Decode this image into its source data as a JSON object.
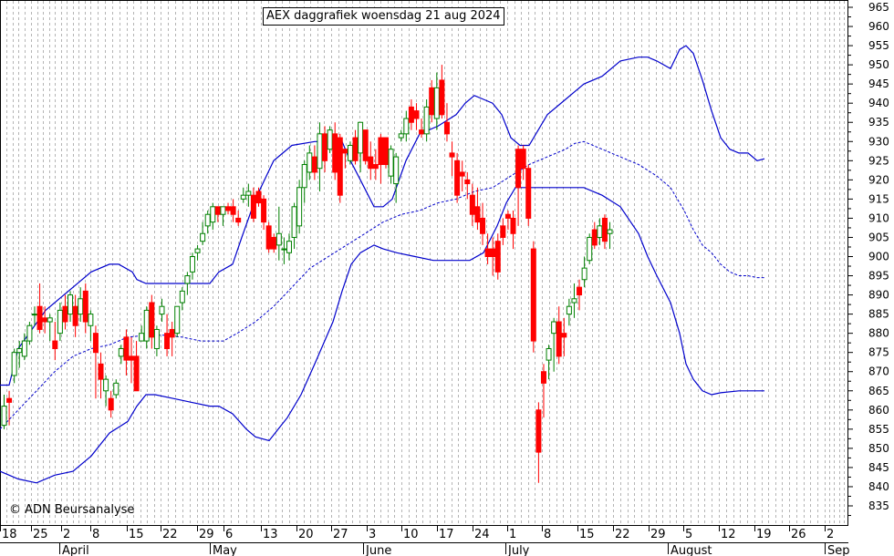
{
  "title": "AEX daggrafiek woensdag 21 aug 2024",
  "copyright": "© ADN Beursanalyse",
  "chart_data": {
    "type": "candlestick",
    "title": "AEX daggrafiek woensdag 21 aug 2024",
    "ylim": [
      829,
      968
    ],
    "y_ticks": [
      835,
      840,
      845,
      850,
      855,
      860,
      865,
      870,
      875,
      880,
      885,
      890,
      895,
      900,
      905,
      910,
      915,
      920,
      925,
      930,
      935,
      940,
      945,
      950,
      955,
      960,
      965
    ],
    "x_tick_labels": [
      "18",
      "25",
      "2",
      "8",
      "15",
      "22",
      "29",
      "6",
      "13",
      "20",
      "27",
      "3",
      "10",
      "17",
      "24",
      "1",
      "8",
      "15",
      "22",
      "29",
      "5",
      "12",
      "19",
      "26",
      "2"
    ],
    "month_labels": [
      "April",
      "May",
      "June",
      "July",
      "August",
      "Sep"
    ],
    "grid": "vertical dashed",
    "colors": {
      "up": "#008000",
      "down": "#ff0000",
      "band": "#0000cc",
      "ma": "#0000cc"
    },
    "ohlc": [
      [
        856,
        864,
        855,
        861
      ],
      [
        863,
        865,
        856,
        862
      ],
      [
        869,
        876,
        867,
        875
      ],
      [
        875,
        878,
        871,
        876
      ],
      [
        874,
        880,
        873,
        878
      ],
      [
        878,
        883,
        877,
        882
      ],
      [
        885,
        887,
        882,
        885
      ],
      [
        887,
        893,
        880,
        881
      ],
      [
        884,
        887,
        880,
        883
      ],
      [
        883,
        885,
        878,
        884
      ],
      [
        878,
        883,
        873,
        876
      ],
      [
        880,
        888,
        878,
        886
      ],
      [
        887,
        890,
        881,
        883
      ],
      [
        885,
        891,
        883,
        890
      ],
      [
        887,
        890,
        879,
        882
      ],
      [
        885,
        892,
        883,
        889
      ],
      [
        891,
        893,
        880,
        883
      ],
      [
        882,
        886,
        878,
        885
      ],
      [
        880,
        882,
        863,
        875
      ],
      [
        872,
        875,
        863,
        868
      ],
      [
        865,
        869,
        861,
        868
      ],
      [
        863,
        865,
        858,
        860
      ],
      [
        864,
        868,
        863,
        867
      ],
      [
        874,
        877,
        872,
        876
      ],
      [
        879,
        881,
        869,
        873
      ],
      [
        874,
        879,
        867,
        873
      ],
      [
        874,
        878,
        865,
        865
      ],
      [
        878,
        882,
        878,
        880
      ],
      [
        878,
        887,
        876,
        886
      ],
      [
        888,
        890,
        876,
        879
      ],
      [
        876,
        882,
        874,
        881
      ],
      [
        885,
        889,
        883,
        887
      ],
      [
        880,
        885,
        874,
        876
      ],
      [
        881,
        883,
        874,
        879
      ],
      [
        880,
        887,
        879,
        887
      ],
      [
        888,
        892,
        886,
        891
      ],
      [
        893,
        896,
        890,
        895
      ],
      [
        896,
        901,
        894,
        900
      ],
      [
        901,
        903,
        899,
        902
      ],
      [
        904,
        909,
        903,
        906
      ],
      [
        908,
        912,
        906,
        911
      ],
      [
        909,
        914,
        907,
        913
      ],
      [
        913,
        913,
        909,
        911
      ],
      [
        911,
        913,
        908,
        913
      ],
      [
        913,
        914,
        911,
        912
      ],
      [
        913,
        915,
        909,
        911
      ],
      [
        910,
        912,
        908,
        909
      ],
      [
        915,
        918,
        914,
        916
      ],
      [
        916,
        919,
        913,
        917
      ],
      [
        916,
        918,
        909,
        910
      ],
      [
        917,
        918,
        913,
        914
      ],
      [
        915,
        916,
        907,
        909
      ],
      [
        908,
        909,
        901,
        902
      ],
      [
        905,
        906,
        901,
        902
      ],
      [
        903,
        913,
        899,
        906
      ],
      [
        902,
        905,
        898,
        902
      ],
      [
        901,
        906,
        899,
        904
      ],
      [
        905,
        914,
        902,
        913
      ],
      [
        908,
        920,
        906,
        918
      ],
      [
        918,
        925,
        914,
        924
      ],
      [
        922,
        929,
        920,
        927
      ],
      [
        926,
        929,
        920,
        922
      ],
      [
        923,
        935,
        917,
        932
      ],
      [
        932,
        934,
        922,
        925
      ],
      [
        928,
        934,
        927,
        933
      ],
      [
        932,
        935,
        920,
        922
      ],
      [
        931,
        932,
        914,
        916
      ],
      [
        928,
        928,
        923,
        927
      ],
      [
        925,
        930,
        924,
        929
      ],
      [
        931,
        933,
        924,
        925
      ],
      [
        927,
        935,
        922,
        935
      ],
      [
        933,
        933,
        924,
        925
      ],
      [
        926,
        930,
        920,
        923
      ],
      [
        924,
        928,
        920,
        923
      ],
      [
        931,
        932,
        919,
        924
      ],
      [
        931,
        931,
        923,
        924
      ],
      [
        921,
        929,
        919,
        928
      ],
      [
        919,
        927,
        914,
        926
      ],
      [
        931,
        933,
        930,
        932
      ],
      [
        932,
        938,
        930,
        936
      ],
      [
        939,
        941,
        933,
        935
      ],
      [
        938,
        940,
        933,
        936
      ],
      [
        933,
        936,
        931,
        932
      ],
      [
        932,
        941,
        930,
        939
      ],
      [
        944,
        946,
        935,
        937
      ],
      [
        936,
        948,
        933,
        944
      ],
      [
        946,
        950,
        936,
        937
      ],
      [
        935,
        940,
        930,
        932
      ],
      [
        927,
        930,
        921,
        926
      ],
      [
        925,
        927,
        914,
        916
      ],
      [
        922,
        925,
        917,
        921
      ],
      [
        920,
        922,
        915,
        919
      ],
      [
        916,
        919,
        908,
        911
      ],
      [
        913,
        918,
        907,
        909
      ],
      [
        910,
        914,
        903,
        906
      ],
      [
        902,
        906,
        898,
        900
      ],
      [
        902,
        905,
        895,
        900
      ],
      [
        904,
        906,
        894,
        896
      ],
      [
        908,
        910,
        903,
        905
      ],
      [
        911,
        912,
        907,
        910
      ],
      [
        910,
        912,
        902,
        906
      ],
      [
        928,
        929,
        908,
        918
      ],
      [
        928,
        929,
        920,
        923
      ],
      [
        923,
        924,
        908,
        910
      ],
      [
        902,
        904,
        875,
        878
      ],
      [
        860,
        862,
        841,
        849
      ],
      [
        870,
        872,
        858,
        867
      ],
      [
        873,
        877,
        868,
        876
      ],
      [
        880,
        884,
        870,
        883
      ],
      [
        883,
        887,
        872,
        874
      ],
      [
        880,
        884,
        874,
        879
      ],
      [
        885,
        889,
        882,
        887
      ],
      [
        888,
        893,
        884,
        889
      ],
      [
        892,
        894,
        886,
        890
      ],
      [
        894,
        900,
        892,
        897
      ],
      [
        899,
        906,
        898,
        905
      ],
      [
        907,
        909,
        902,
        903
      ],
      [
        905,
        910,
        903,
        908
      ],
      [
        910,
        911,
        902,
        904
      ],
      [
        906,
        909,
        902,
        907
      ]
    ],
    "bollinger": {
      "upper": [
        [
          0,
          866.5
        ],
        [
          10,
          866.5
        ],
        [
          20,
          876
        ],
        [
          50,
          886
        ],
        [
          80,
          892
        ],
        [
          100,
          896
        ],
        [
          120,
          898
        ],
        [
          130,
          898
        ],
        [
          145,
          896
        ],
        [
          150,
          894
        ],
        [
          160,
          893
        ],
        [
          200,
          893
        ],
        [
          230,
          893
        ],
        [
          240,
          896
        ],
        [
          255,
          898
        ],
        [
          265,
          905
        ],
        [
          280,
          915
        ],
        [
          300,
          925
        ],
        [
          320,
          929
        ],
        [
          345,
          930
        ],
        [
          375,
          930
        ],
        [
          382,
          926
        ],
        [
          395,
          920
        ],
        [
          410,
          913
        ],
        [
          420,
          913
        ],
        [
          430,
          915
        ],
        [
          445,
          925
        ],
        [
          460,
          932
        ],
        [
          480,
          934
        ],
        [
          500,
          937
        ],
        [
          510,
          940
        ],
        [
          520,
          942
        ],
        [
          530,
          941
        ],
        [
          540,
          940
        ],
        [
          550,
          937
        ],
        [
          560,
          931
        ],
        [
          570,
          929
        ],
        [
          580,
          929
        ],
        [
          600,
          937
        ],
        [
          620,
          941
        ],
        [
          630,
          943
        ],
        [
          640,
          945
        ],
        [
          660,
          947
        ],
        [
          680,
          951
        ],
        [
          700,
          952
        ],
        [
          710,
          952
        ],
        [
          720,
          951
        ],
        [
          735,
          949
        ],
        [
          745,
          954
        ],
        [
          752,
          955
        ],
        [
          760,
          953
        ],
        [
          770,
          946
        ],
        [
          780,
          938
        ],
        [
          790,
          931
        ],
        [
          800,
          928
        ],
        [
          810,
          927
        ],
        [
          820,
          927
        ],
        [
          830,
          925
        ],
        [
          838,
          925.5
        ]
      ],
      "middle": [
        [
          0,
          855
        ],
        [
          20,
          860
        ],
        [
          40,
          865
        ],
        [
          60,
          870
        ],
        [
          80,
          874
        ],
        [
          100,
          876
        ],
        [
          120,
          877
        ],
        [
          140,
          879
        ],
        [
          160,
          879.5
        ],
        [
          180,
          879.5
        ],
        [
          200,
          879
        ],
        [
          220,
          878
        ],
        [
          245,
          878
        ],
        [
          260,
          880
        ],
        [
          280,
          883
        ],
        [
          300,
          887
        ],
        [
          320,
          892
        ],
        [
          340,
          897
        ],
        [
          360,
          900
        ],
        [
          380,
          903
        ],
        [
          400,
          906
        ],
        [
          420,
          909
        ],
        [
          440,
          911
        ],
        [
          460,
          912
        ],
        [
          480,
          914
        ],
        [
          500,
          915
        ],
        [
          520,
          917
        ],
        [
          540,
          918
        ],
        [
          560,
          921
        ],
        [
          580,
          924
        ],
        [
          600,
          926
        ],
        [
          620,
          928
        ],
        [
          630,
          929.5
        ],
        [
          640,
          930
        ],
        [
          660,
          928
        ],
        [
          680,
          926
        ],
        [
          700,
          924
        ],
        [
          720,
          921
        ],
        [
          735,
          918
        ],
        [
          750,
          912
        ],
        [
          760,
          907
        ],
        [
          770,
          903
        ],
        [
          780,
          901
        ],
        [
          790,
          898
        ],
        [
          800,
          896
        ],
        [
          810,
          895
        ],
        [
          820,
          895
        ],
        [
          830,
          894.5
        ],
        [
          838,
          894.5
        ]
      ],
      "lower": [
        [
          0,
          844
        ],
        [
          10,
          843
        ],
        [
          20,
          842
        ],
        [
          40,
          841
        ],
        [
          60,
          843
        ],
        [
          80,
          844
        ],
        [
          100,
          848
        ],
        [
          120,
          854
        ],
        [
          140,
          857
        ],
        [
          150,
          861
        ],
        [
          160,
          864
        ],
        [
          170,
          864
        ],
        [
          190,
          863
        ],
        [
          210,
          862
        ],
        [
          230,
          861
        ],
        [
          240,
          861
        ],
        [
          255,
          859
        ],
        [
          270,
          855
        ],
        [
          280,
          853
        ],
        [
          295,
          852
        ],
        [
          305,
          855
        ],
        [
          315,
          858
        ],
        [
          330,
          864
        ],
        [
          345,
          872
        ],
        [
          365,
          883
        ],
        [
          375,
          891
        ],
        [
          385,
          898
        ],
        [
          395,
          901
        ],
        [
          410,
          903
        ],
        [
          420,
          902
        ],
        [
          435,
          901
        ],
        [
          455,
          900
        ],
        [
          475,
          899
        ],
        [
          500,
          899
        ],
        [
          515,
          899
        ],
        [
          530,
          901
        ],
        [
          545,
          908
        ],
        [
          555,
          914
        ],
        [
          565,
          918
        ],
        [
          580,
          918
        ],
        [
          600,
          918
        ],
        [
          620,
          918
        ],
        [
          640,
          918
        ],
        [
          660,
          916
        ],
        [
          680,
          913
        ],
        [
          700,
          906
        ],
        [
          710,
          900
        ],
        [
          720,
          895
        ],
        [
          735,
          888
        ],
        [
          745,
          880
        ],
        [
          752,
          872
        ],
        [
          760,
          868
        ],
        [
          770,
          865
        ],
        [
          780,
          864
        ],
        [
          790,
          864.5
        ],
        [
          810,
          865
        ],
        [
          830,
          865
        ],
        [
          838,
          865
        ]
      ]
    }
  }
}
